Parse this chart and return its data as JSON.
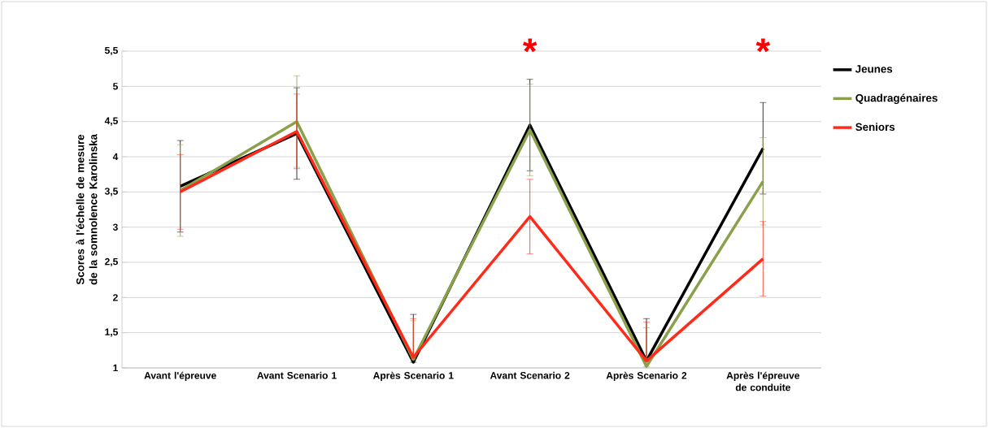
{
  "chart_data": {
    "type": "line",
    "ylabel": "Scores à l’échelle de mesure de la somnolence Karolinska",
    "categories": [
      "Avant l'épreuve",
      "Avant Scenario 1",
      "Après Scenario 1",
      "Avant Scenario 2",
      "Après Scenario 2",
      "Après l'épreuve de conduite"
    ],
    "series": [
      {
        "name": "Jeunes",
        "color": "#000000",
        "values": [
          3.58,
          4.33,
          1.08,
          4.45,
          1.1,
          4.12
        ],
        "errors": [
          0.65,
          0.65,
          [
            1.08,
            1.76
          ],
          0.65,
          [
            1.1,
            1.7
          ],
          0.65
        ]
      },
      {
        "name": "Quadragénaires",
        "color": "#8aa04a",
        "values": [
          3.52,
          4.5,
          1.12,
          4.38,
          1.02,
          3.65
        ],
        "errors": [
          0.65,
          0.65,
          [
            1.12,
            1.67
          ],
          0.65,
          [
            1.02,
            1.57
          ],
          0.62
        ]
      },
      {
        "name": "Seniors",
        "color": "#ff2a1a",
        "values": [
          3.5,
          4.36,
          1.15,
          3.15,
          1.1,
          2.55
        ],
        "errors": [
          0.53,
          0.53,
          [
            1.15,
            1.7
          ],
          0.53,
          [
            1.1,
            1.65
          ],
          0.53
        ]
      }
    ],
    "ylim": [
      1,
      5.5
    ],
    "yticks": [
      1,
      {
        "value": 1.5,
        "label": "1,5"
      },
      2,
      {
        "value": 2.5,
        "label": "2,5"
      },
      3,
      {
        "value": 3.5,
        "label": "3,5"
      },
      4,
      {
        "value": 4.5,
        "label": "4,5"
      },
      5,
      {
        "value": 5.5,
        "label": "5,5"
      }
    ],
    "annotations": [
      "*",
      "*"
    ],
    "grid": "y",
    "legend": "right",
    "marker": "none",
    "line_style": "solid"
  }
}
